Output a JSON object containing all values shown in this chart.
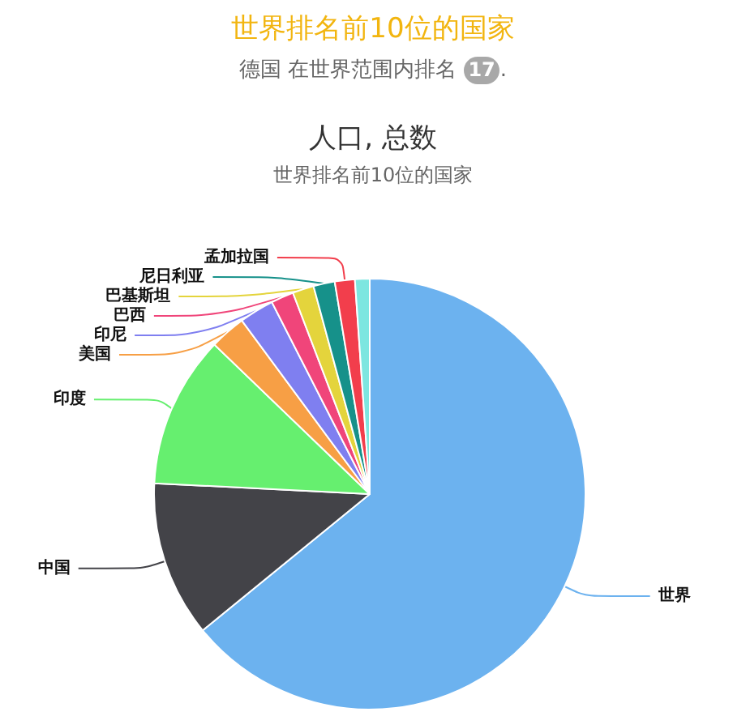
{
  "chart_data": {
    "type": "pie",
    "title": "人口, 总数",
    "subtitle": "世界排名前10位的国家",
    "annotations": [
      "世界排名前10位的国家",
      "德国 在世界范围内排名 17."
    ],
    "categories": [
      "世界",
      "中国",
      "印度",
      "美国",
      "印尼",
      "巴西",
      "巴基斯坦",
      "尼日利亚",
      "孟加拉国",
      null
    ],
    "values": [
      64.1,
      11.7,
      11.4,
      2.7,
      2.6,
      1.7,
      1.6,
      1.6,
      1.5,
      1.1
    ],
    "colors": [
      "#6cb2ef",
      "#434348",
      "#66ef6f",
      "#f79f45",
      "#7f7ff0",
      "#f0457a",
      "#e4d43c",
      "#16918a",
      "#f23e4c",
      "#7de6e0"
    ]
  }
}
